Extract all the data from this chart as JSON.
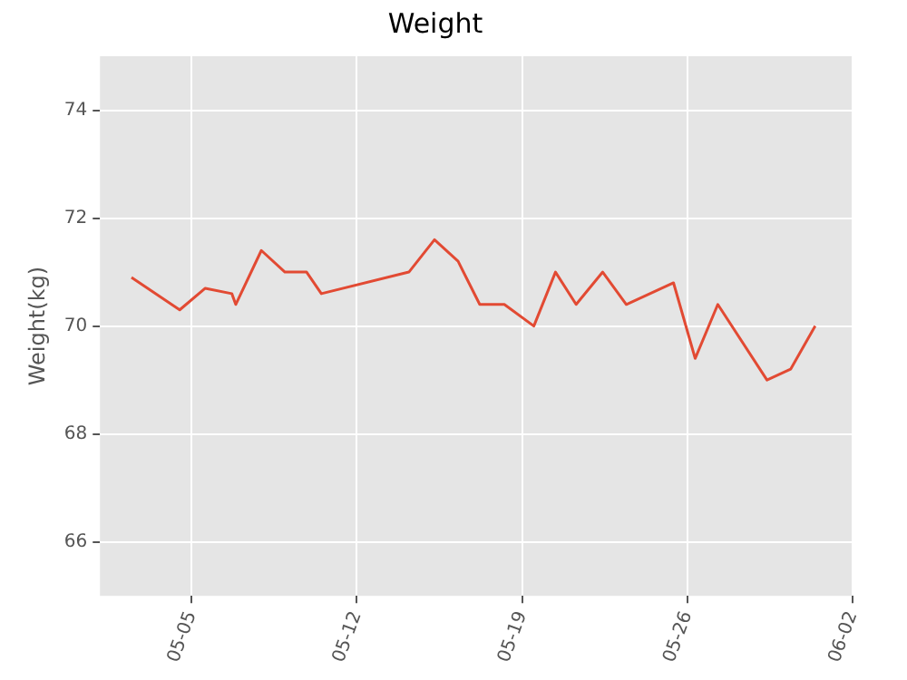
{
  "chart_data": {
    "type": "line",
    "title": "Weight",
    "ylabel": "Weight(kg)",
    "x": [
      "--05-02T11:00",
      "--05-04T12:00",
      "--05-05T14:00",
      "--05-06T17:00",
      "--05-06T21:00",
      "--05-07T23:00",
      "--05-08T23:00",
      "--05-09T21:00",
      "--05-10T12:00",
      "--05-14T05:00",
      "--05-15T07:00",
      "--05-16T07:00",
      "--05-17T05:00",
      "--05-18T06:00",
      "--05-19T12:00",
      "--05-20T10:00",
      "--05-21T07:00",
      "--05-22T10:00",
      "--05-23T10:00",
      "--05-25T10:00",
      "--05-26T08:00",
      "--05-27T07:00",
      "--05-29T09:00",
      "--05-30T09:00",
      "--05-31T10:00"
    ],
    "series": [
      {
        "color": "#e24a33",
        "values": [
          70.9,
          70.3,
          70.7,
          70.6,
          70.4,
          71.4,
          71.0,
          71.0,
          70.6,
          71.0,
          71.6,
          71.2,
          70.4,
          70.4,
          70.0,
          71.0,
          70.4,
          71.0,
          70.4,
          70.8,
          69.4,
          70.4,
          69.0,
          69.2,
          70.0
        ]
      }
    ],
    "xlim": [
      "--05-01T03:00",
      "--06-02"
    ],
    "xticks": [
      {
        "value": "--05-05",
        "label": "05-05"
      },
      {
        "value": "--05-12",
        "label": "05-12"
      },
      {
        "value": "--05-19",
        "label": "05-19"
      },
      {
        "value": "--05-26",
        "label": "05-26"
      },
      {
        "value": "--06-02",
        "label": "06-02"
      }
    ],
    "ylim": [
      65,
      75
    ],
    "yticks": [
      66,
      68,
      70,
      72,
      74
    ],
    "grid": true,
    "legend": false,
    "marker": "none",
    "line_style": "solid"
  }
}
